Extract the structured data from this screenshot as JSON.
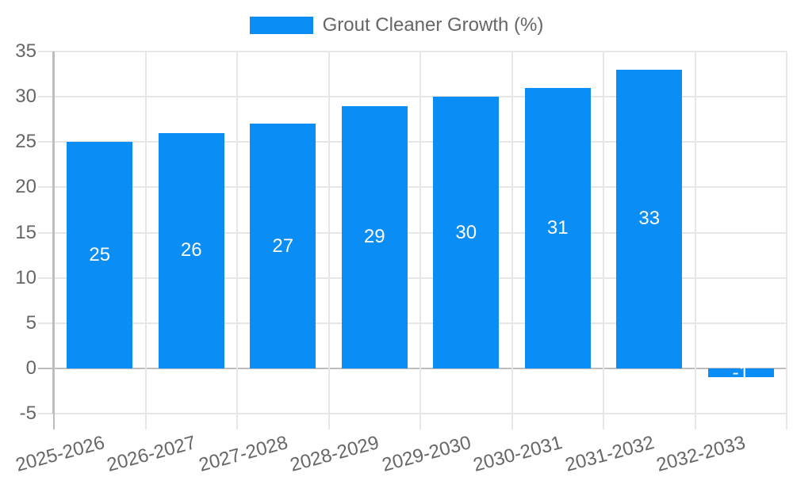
{
  "legend": {
    "label": "Grout Cleaner Growth (%)"
  },
  "chart_data": {
    "type": "bar",
    "title": "",
    "categories": [
      "2025-2026",
      "2026-2027",
      "2027-2028",
      "2028-2029",
      "2029-2030",
      "2030-2031",
      "2031-2032",
      "2032-2033"
    ],
    "series": [
      {
        "name": "Grout Cleaner Growth (%)",
        "values": [
          25,
          26,
          27,
          29,
          30,
          31,
          33,
          -1
        ]
      }
    ],
    "value_labels": [
      "25",
      "26",
      "27",
      "29",
      "30",
      "31",
      "33",
      "-1"
    ],
    "ylim": [
      -5,
      35
    ],
    "yticks": [
      35,
      30,
      25,
      20,
      15,
      10,
      5,
      0,
      -5
    ],
    "grid": true,
    "legend_position": "top",
    "x_label_rotation_deg": -15,
    "colors": {
      "bar": "#0a8df5",
      "gridline": "#e6e6e6",
      "zero_line": "#bdbdbd",
      "axis_border": "#bdbdbd",
      "tick_text": "#666666",
      "legend_text": "#666666",
      "value_label": "#ffffff",
      "background": "#ffffff"
    }
  }
}
